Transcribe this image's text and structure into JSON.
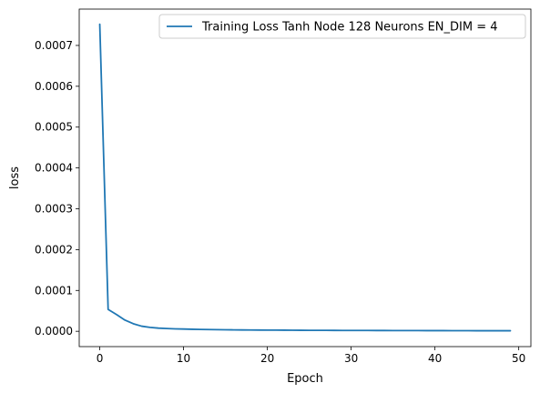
{
  "chart_data": {
    "type": "line",
    "title": "",
    "xlabel": "Epoch",
    "ylabel": "loss",
    "xlim": [
      -2.45,
      51.45
    ],
    "ylim": [
      -3.75e-05,
      0.000789
    ],
    "xticks": [
      0,
      10,
      20,
      30,
      40,
      50
    ],
    "xtick_labels": [
      "0",
      "10",
      "20",
      "30",
      "40",
      "50"
    ],
    "yticks": [
      0.0,
      0.0001,
      0.0002,
      0.0003,
      0.0004,
      0.0005,
      0.0006,
      0.0007
    ],
    "ytick_labels": [
      "0.0000",
      "0.0001",
      "0.0002",
      "0.0003",
      "0.0004",
      "0.0005",
      "0.0006",
      "0.0007"
    ],
    "grid": false,
    "legend_position": "top-right",
    "series": [
      {
        "name": "Training Loss Tanh Node 128 Neurons EN_DIM = 4",
        "color": "#1f77b4",
        "x": [
          0,
          1,
          2,
          3,
          4,
          5,
          6,
          7,
          8,
          9,
          10,
          11,
          12,
          13,
          14,
          15,
          16,
          17,
          18,
          19,
          20,
          21,
          22,
          23,
          24,
          25,
          26,
          27,
          28,
          29,
          30,
          31,
          32,
          33,
          34,
          35,
          36,
          37,
          38,
          39,
          40,
          41,
          42,
          43,
          44,
          45,
          46,
          47,
          48,
          49
        ],
        "y": [
          0.000752,
          5.35e-05,
          4.1e-05,
          2.75e-05,
          1.85e-05,
          1.25e-05,
          9.5e-06,
          7.8e-06,
          6.8e-06,
          6e-06,
          5.5e-06,
          5e-06,
          4.6e-06,
          4.3e-06,
          4e-06,
          3.7e-06,
          3.5e-06,
          3.3e-06,
          3.1e-06,
          3e-06,
          2.9e-06,
          2.8e-06,
          2.7e-06,
          2.6e-06,
          2.5e-06,
          2.4e-06,
          2.3e-06,
          2.3e-06,
          2.2e-06,
          2.1e-06,
          2.1e-06,
          2e-06,
          2e-06,
          1.9e-06,
          1.9e-06,
          1.8e-06,
          1.8e-06,
          1.7e-06,
          1.7e-06,
          1.6e-06,
          1.6e-06,
          1.6e-06,
          1.5e-06,
          1.5e-06,
          1.5e-06,
          1.4e-06,
          1.4e-06,
          1.4e-06,
          1.3e-06,
          1.3e-06
        ]
      }
    ]
  }
}
